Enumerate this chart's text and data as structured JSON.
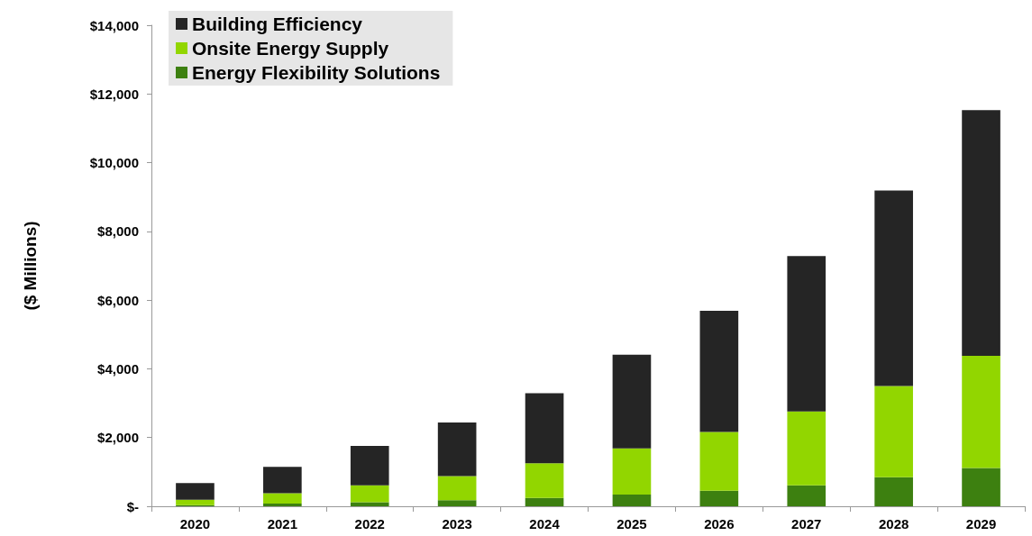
{
  "chart_data": {
    "type": "bar",
    "stacked": true,
    "ylabel": "($ Millions)",
    "categories": [
      "2020",
      "2021",
      "2022",
      "2023",
      "2024",
      "2025",
      "2026",
      "2027",
      "2028",
      "2029"
    ],
    "series": [
      {
        "name": "Energy Flexibility Solutions",
        "color": "#3d8010",
        "values": [
          35,
          80,
          120,
          175,
          245,
          340,
          450,
          610,
          845,
          1115
        ]
      },
      {
        "name": "Onsite Energy Supply",
        "color": "#92d600",
        "values": [
          155,
          300,
          490,
          705,
          1005,
          1345,
          1715,
          2150,
          2655,
          3265
        ]
      },
      {
        "name": "Building Efficiency",
        "color": "#252525",
        "values": [
          485,
          770,
          1145,
          1560,
          2040,
          2725,
          3525,
          4520,
          5690,
          7150
        ]
      }
    ],
    "ylim": [
      0,
      14000
    ],
    "yticks": [
      {
        "value": 0,
        "label": "$-"
      },
      {
        "value": 2000,
        "label": "$2,000"
      },
      {
        "value": 4000,
        "label": "$4,000"
      },
      {
        "value": 6000,
        "label": "$6,000"
      },
      {
        "value": 8000,
        "label": "$8,000"
      },
      {
        "value": 10000,
        "label": "$10,000"
      },
      {
        "value": 12000,
        "label": "$12,000"
      },
      {
        "value": 14000,
        "label": "$14,000"
      }
    ],
    "grid": false,
    "legend": "top left"
  }
}
